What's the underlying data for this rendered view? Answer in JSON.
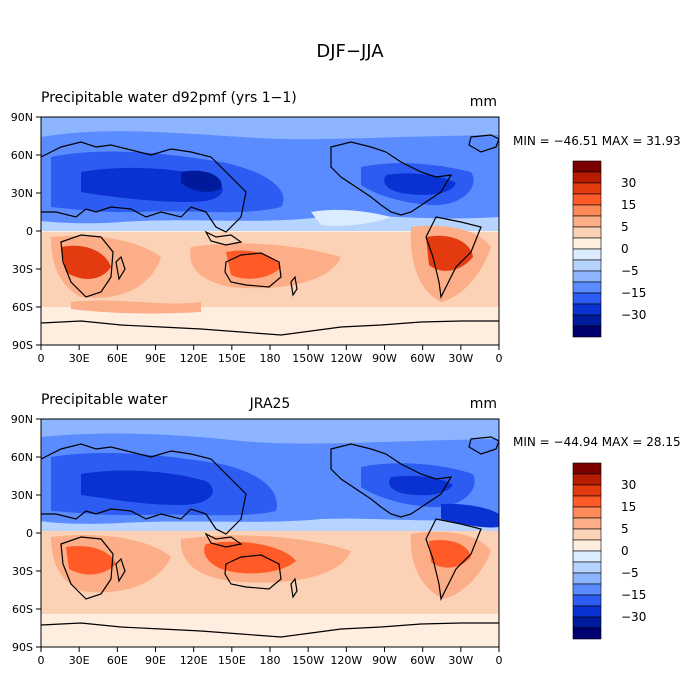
{
  "figure": {
    "title": "DJF−JJA"
  },
  "panels": [
    {
      "left_title": "Precipitable water  d92pmf (yrs 1−1)",
      "center_title": "",
      "units": "mm",
      "min_max": "MIN = −46.51  MAX =  31.93"
    },
    {
      "left_title": "Precipitable water",
      "center_title": "JRA25",
      "units": "mm",
      "min_max": "MIN = −44.94  MAX =  28.15"
    }
  ],
  "axes": {
    "x_ticks": [
      "0",
      "30E",
      "60E",
      "90E",
      "120E",
      "150E",
      "180",
      "150W",
      "120W",
      "90W",
      "60W",
      "30W",
      "0"
    ],
    "y_ticks": [
      "90N",
      "60N",
      "30N",
      "0",
      "30S",
      "60S",
      "90S"
    ]
  },
  "colorbar": {
    "labels": [
      "30",
      "15",
      "5",
      "0",
      "−5",
      "−15",
      "−30"
    ],
    "colors": [
      "#7a0000",
      "#b81c00",
      "#e43a10",
      "#ff5a28",
      "#fd8a58",
      "#fbae88",
      "#fcd2b6",
      "#fdeee0",
      "#dcecff",
      "#b6d4ff",
      "#8cb4ff",
      "#5a8cff",
      "#2c5cf2",
      "#0a32d2",
      "#001a9c",
      "#000070"
    ]
  },
  "map_colors": {
    "ocean_neutral": "#fdeee0",
    "light_pos": "#fcd2b6",
    "mid_pos": "#fbae88",
    "strong_pos": "#ff5a28",
    "extreme_pos": "#e43a10",
    "light_neg": "#b6d4ff",
    "mid_neg": "#8cb4ff",
    "strong_neg": "#5a8cff",
    "very_neg": "#2c5cf2",
    "extreme_neg": "#0a32d2",
    "deep_neg": "#001a9c"
  }
}
